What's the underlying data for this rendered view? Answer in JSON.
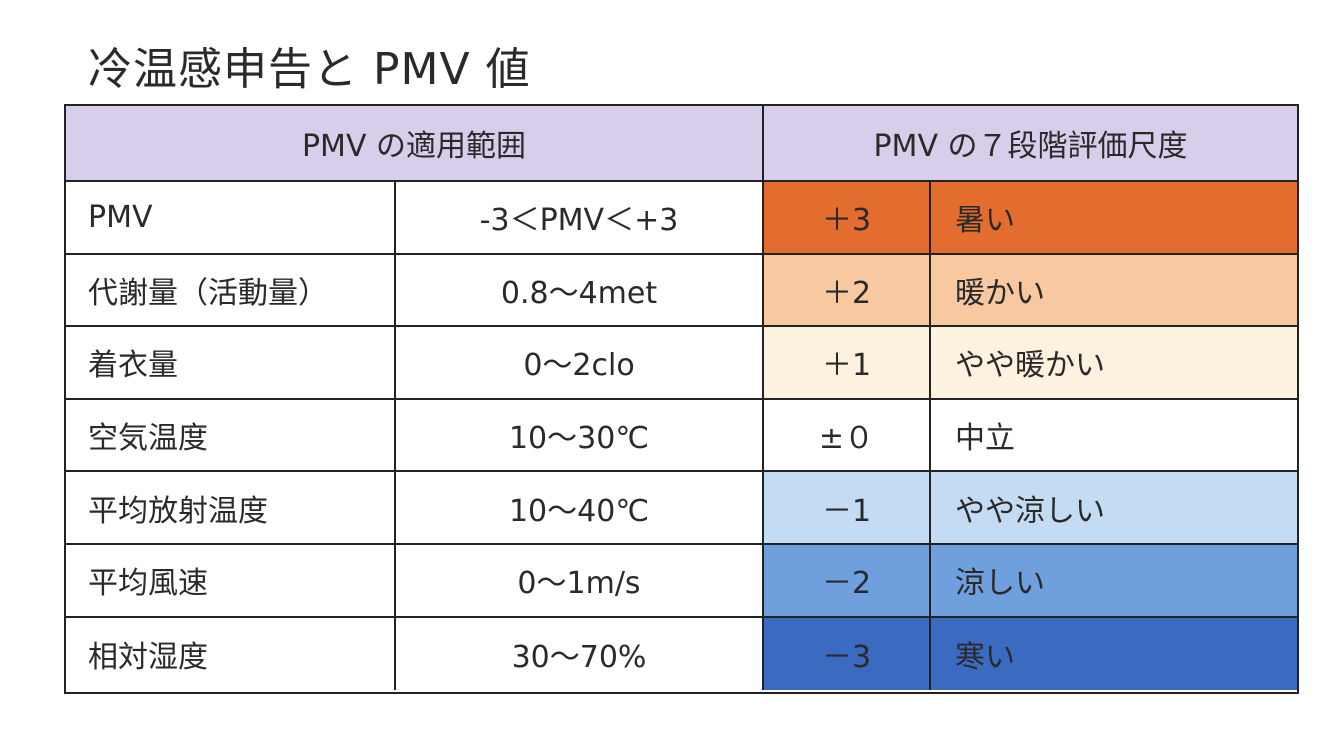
{
  "title": "冷温感申告と PMV 値",
  "headers": {
    "left": "PMV の適用範囲",
    "right": "PMV の７段階評価尺度"
  },
  "applicability": [
    {
      "param": "PMV",
      "range": "-3＜PMV＜+3"
    },
    {
      "param": "代謝量（活動量）",
      "range": "0.8～4met"
    },
    {
      "param": "着衣量",
      "range": "0～2clo"
    },
    {
      "param": "空気温度",
      "range": "10～30℃"
    },
    {
      "param": "平均放射温度",
      "range": "10～40℃"
    },
    {
      "param": "平均風速",
      "range": "0～1m/s"
    },
    {
      "param": "相対湿度",
      "range": "30～70%"
    }
  ],
  "scale": [
    {
      "value": "＋3",
      "label": "暑い",
      "color": "#e36d2f"
    },
    {
      "value": "＋2",
      "label": "暖かい",
      "color": "#f8c8a0"
    },
    {
      "value": "＋1",
      "label": "やや暖かい",
      "color": "#fdf2e0"
    },
    {
      "value": "±０",
      "label": "中立",
      "color": "#ffffff"
    },
    {
      "value": "－1",
      "label": "やや涼しい",
      "color": "#c4dcf3"
    },
    {
      "value": "－2",
      "label": "涼しい",
      "color": "#6f9fdc"
    },
    {
      "value": "－3",
      "label": "寒い",
      "color": "#3a6bc0"
    }
  ]
}
